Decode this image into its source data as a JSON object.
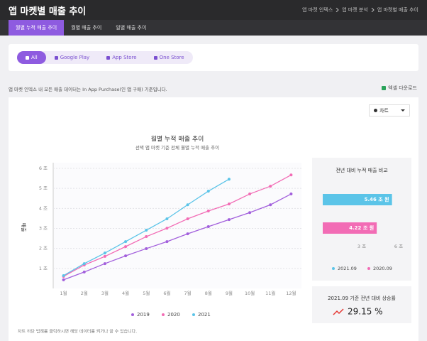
{
  "header": {
    "title": "앱 마켓별 매출 추이",
    "breadcrumb": [
      "앱 마켓 인덱스",
      "앱 마켓 분석",
      "앱 마켓별 매출 추이"
    ]
  },
  "tabs": [
    "월별 누적 매출 추이",
    "월별 매출 추이",
    "일별 매출 추이"
  ],
  "active_tab": 0,
  "filters": [
    "All",
    "Google Play",
    "App Store",
    "One Store"
  ],
  "active_filter": 0,
  "notice": "앱 마켓 인덱스 내 모든 매출 데이터는 In App Purchase(인 앱 구매) 기준입니다.",
  "download": "엑셀 다운로드",
  "view_select": "차트",
  "footnote": "차트 하단 범례를 클릭하시면 해당 데이터를 켜거나 끌 수 있습니다.",
  "growth": {
    "title": "2021.09 기준 전년 대비 상승률",
    "value": "29.15 %"
  },
  "chart_data": [
    {
      "type": "line",
      "title": "월별 누적 매출 추이",
      "subtitle": "선택 앱 마켓 기준 전체 월별 누적 매출 추이",
      "y_label": "매출",
      "categories": [
        "1월",
        "2월",
        "3월",
        "4월",
        "5월",
        "6월",
        "7월",
        "8월",
        "9월",
        "10월",
        "11월",
        "12월"
      ],
      "series": [
        {
          "name": "2019",
          "color": "#a25fdc",
          "values": [
            0.43,
            0.82,
            1.24,
            1.63,
            1.99,
            2.34,
            2.73,
            3.09,
            3.44,
            3.79,
            4.18,
            4.72
          ]
        },
        {
          "name": "2020",
          "color": "#f26cb5",
          "values": [
            0.6,
            1.17,
            1.6,
            2.09,
            2.59,
            3.01,
            3.48,
            3.87,
            4.22,
            4.72,
            5.11,
            5.67
          ]
        },
        {
          "name": "2021",
          "color": "#5bc4e8",
          "values": [
            0.64,
            1.24,
            1.77,
            2.34,
            2.91,
            3.48,
            4.18,
            4.86,
            5.46,
            null,
            null,
            null
          ]
        }
      ],
      "ylim": [
        0,
        6
      ],
      "yticks": [
        {
          "value": 1,
          "label": "1 조"
        },
        {
          "value": 2,
          "label": "2 조"
        },
        {
          "value": 3,
          "label": "3 조"
        },
        {
          "value": 4,
          "label": "4 조"
        },
        {
          "value": 5,
          "label": "5 조"
        },
        {
          "value": 6,
          "label": "6 조"
        }
      ],
      "grid": true
    },
    {
      "type": "hbar",
      "title": "전년 대비 누적 매출 비교",
      "categories": [
        "2021.09",
        "2020.09"
      ],
      "values": [
        5.46,
        4.22
      ],
      "value_labels": [
        "5.46 조 원",
        "4.22 조 원"
      ],
      "colors": [
        "#5bc4e8",
        "#f26cb5"
      ],
      "xlim": [
        0,
        6
      ],
      "xticks": [
        {
          "value": 3,
          "label": "3 조"
        },
        {
          "value": 6,
          "label": "6 조"
        }
      ]
    }
  ]
}
